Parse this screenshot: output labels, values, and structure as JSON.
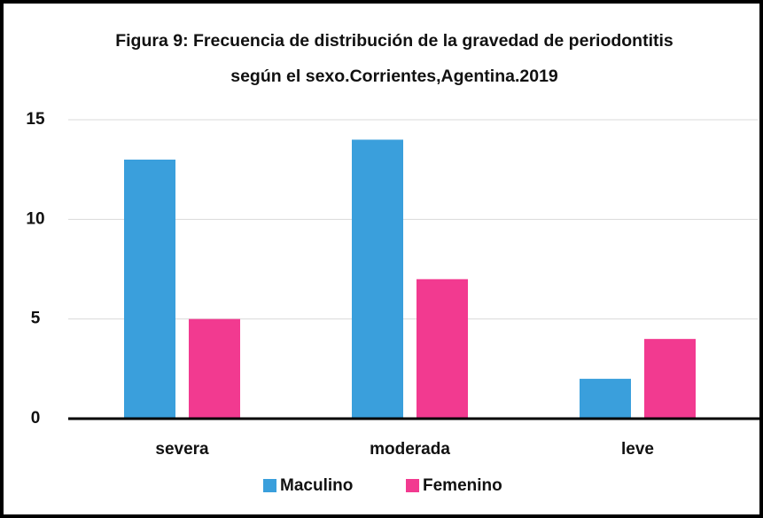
{
  "chart_data": {
    "type": "bar",
    "title": "Figura 9: Frecuencia de distribución de la gravedad de periodontitis según el sexo.Corrientes,Agentina.2019",
    "categories": [
      "severa",
      "moderada",
      "leve"
    ],
    "series": [
      {
        "name": "Maculino",
        "color": "#3a9fdc",
        "values": [
          13,
          14,
          2
        ]
      },
      {
        "name": "Femenino",
        "color": "#f23a90",
        "values": [
          5,
          7,
          4
        ]
      }
    ],
    "ylim": [
      0,
      15
    ],
    "yticks": [
      0,
      5,
      10,
      15
    ],
    "grid": true,
    "legend": "bottom"
  }
}
